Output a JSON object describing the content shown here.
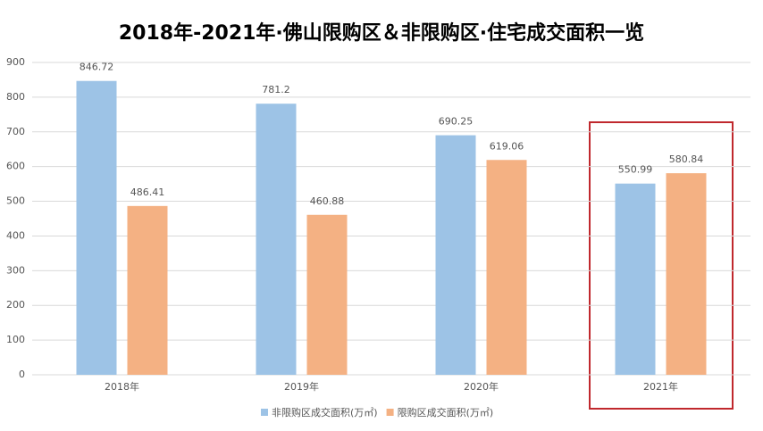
{
  "chart_data": {
    "type": "bar",
    "title": "2018年-2021年·佛山限购区＆非限购区·住宅成交面积一览",
    "categories": [
      "2018年",
      "2019年",
      "2020年",
      "2021年"
    ],
    "series": [
      {
        "name": "非限购区成交面积(万㎡)",
        "color": "#9dc3e6",
        "values": [
          846.72,
          781.2,
          690.25,
          550.99
        ]
      },
      {
        "name": "限购区成交面积(万㎡)",
        "color": "#f4b183",
        "values": [
          486.41,
          460.88,
          619.06,
          580.84
        ]
      }
    ],
    "ylim": [
      0,
      900
    ],
    "yticks": [
      0,
      100,
      200,
      300,
      400,
      500,
      600,
      700,
      800,
      900
    ],
    "grid": true
  }
}
